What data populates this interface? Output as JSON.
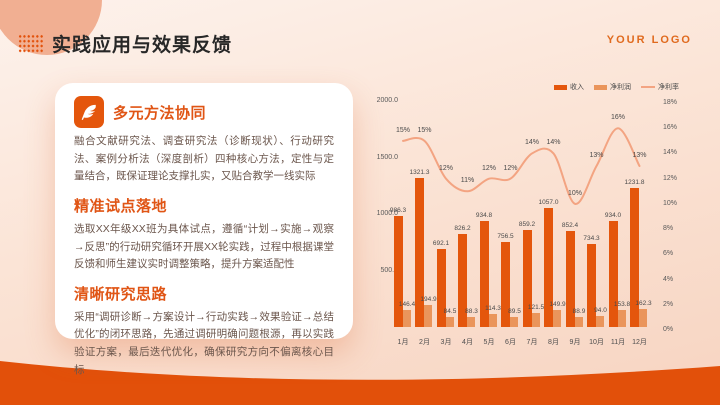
{
  "slide": {
    "title": "实践应用与效果反馈",
    "logo": "YOUR LOGO"
  },
  "sections": [
    {
      "heading": "多元方法协同",
      "icon": "quill-pen-icon",
      "body": "融合文献研究法、调查研究法（诊断现状）、行动研究法、案例分析法（深度剖析）四种核心方法，定性与定量结合，既保证理论支撑扎实，又贴合教学一线实际"
    },
    {
      "heading": "精准试点落地",
      "body": "选取XX年级XX班为具体试点，遵循“计划→实施→观察→反思”的行动研究循环开展XX轮实践，过程中根据课堂反馈和师生建议实时调整策略，提升方案适配性"
    },
    {
      "heading": "清晰研究思路",
      "body": "采用“调研诊断→方案设计→行动实践→效果验证→总结优化”的闭环思路，先通过调研明确问题根源，再以实践验证方案，最后迭代优化，确保研究方向不偏离核心目标"
    }
  ],
  "chart_data": {
    "type": "bar",
    "subtype": "grouped-bars-with-line",
    "categories": [
      "1月",
      "2月",
      "3月",
      "4月",
      "5月",
      "6月",
      "7月",
      "8月",
      "9月",
      "10月",
      "11月",
      "12月"
    ],
    "series": [
      {
        "name": "收入",
        "type": "bar",
        "color": "#e4560c",
        "values": [
          986.3,
          1321.3,
          692.1,
          826.2,
          934.8,
          756.5,
          859.2,
          1057.0,
          852.4,
          734.3,
          934.0,
          1231.8
        ]
      },
      {
        "name": "净利润",
        "type": "bar",
        "color": "#ea955b",
        "values": [
          146.4,
          194.9,
          84.5,
          88.3,
          114.3,
          89.5,
          121.5,
          149.9,
          88.9,
          94.0,
          153.8,
          162.3
        ]
      },
      {
        "name": "净利率",
        "type": "line",
        "color": "#f3a482",
        "values": [
          15,
          15,
          12,
          11,
          12,
          12,
          14,
          14,
          10,
          13,
          16,
          13
        ],
        "unit": "%"
      }
    ],
    "left_axis": {
      "ticks": [
        "2000.0",
        "1500.0",
        "1000.0",
        "500.0"
      ],
      "min": 0,
      "max": 2000
    },
    "right_axis": {
      "ticks": [
        "18%",
        "16%",
        "14%",
        "12%",
        "10%",
        "8%",
        "6%",
        "4%",
        "2%",
        "0%"
      ],
      "min": 0,
      "max": 18
    },
    "legend_position": "top-right",
    "grid": false
  },
  "colors": {
    "accent": "#e2500a",
    "heading": "#e05515",
    "revenue_bar": "#e4560c",
    "profit_bar": "#ea955b",
    "rate_line": "#f3a482",
    "background_top": "#fdf2ec",
    "background_bottom": "#f7d4c1",
    "corner_circle": "#f1af92"
  }
}
